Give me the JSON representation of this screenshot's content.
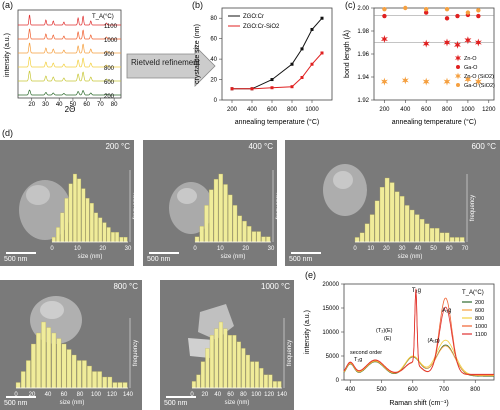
{
  "figure": {
    "panel_labels": [
      "(a)",
      "(b)",
      "(c)",
      "(d)",
      "(e)"
    ],
    "arrow_label": "Rietveld refinement"
  },
  "colors": {
    "ta1100": "#e03030",
    "ta1000": "#f06030",
    "ta900": "#f5a040",
    "ta800": "#f3d040",
    "ta600": "#c8c83a",
    "ta200": "#2e6b2e",
    "black_series": "#111111",
    "red_series": "#e02020",
    "hist_fill": "#f0ec9a",
    "hist_stroke": "#b8b060"
  },
  "chart_data": [
    {
      "id": "a",
      "type": "line",
      "legend_title": "T_A(°C)",
      "xlabel": "2Θ",
      "ylabel": "intensity (a.u.)",
      "xlim": [
        10,
        85
      ],
      "xticks": [
        20,
        30,
        40,
        50,
        60,
        70,
        80
      ],
      "series": [
        {
          "name": "1100",
          "offset": 5
        },
        {
          "name": "1000",
          "offset": 4
        },
        {
          "name": "900",
          "offset": 3
        },
        {
          "name": "800",
          "offset": 2
        },
        {
          "name": "600",
          "offset": 1
        },
        {
          "name": "200",
          "offset": 0
        }
      ],
      "peaks": [
        18.4,
        30.3,
        35.7,
        43.4,
        53.8,
        57.4,
        63.0,
        74.5
      ]
    },
    {
      "id": "b",
      "type": "line",
      "xlabel": "annealing temperature (°C)",
      "ylabel": "crystallite size (nm)",
      "xlim": [
        100,
        1200
      ],
      "ylim": [
        0,
        90
      ],
      "xticks": [
        200,
        400,
        600,
        800,
        1000
      ],
      "yticks": [
        0,
        20,
        40,
        60,
        80
      ],
      "x": [
        200,
        400,
        600,
        800,
        900,
        1000,
        1100
      ],
      "series": [
        {
          "name": "ZGO:Cr",
          "values": [
            11,
            11,
            20,
            35,
            50,
            69,
            80
          ]
        },
        {
          "name": "ZGO:Cr-SiO2",
          "values": [
            11,
            11,
            12,
            13,
            22,
            35,
            46
          ]
        }
      ]
    },
    {
      "id": "c",
      "type": "scatter",
      "xlabel": "annealing temperature (°C)",
      "ylabel": "bond length (Å)",
      "xlim": [
        100,
        1250
      ],
      "ylim": [
        1.92,
        2.0
      ],
      "xticks": [
        200,
        400,
        600,
        800,
        1000,
        1200
      ],
      "yticks": [
        1.92,
        1.94,
        1.96,
        1.98,
        2.0
      ],
      "ref_lines": [
        1.9935,
        1.97
      ],
      "series": [
        {
          "name": "Zn-O",
          "marker": "star",
          "x": [
            200,
            600,
            800,
            900,
            1000,
            1100
          ],
          "values": [
            1.973,
            1.969,
            1.97,
            1.968,
            1.972,
            1.97
          ]
        },
        {
          "name": "Ga-O",
          "marker": "dot",
          "x": [
            200,
            600,
            800,
            900,
            1000,
            1100
          ],
          "values": [
            1.993,
            1.996,
            1.991,
            1.993,
            1.994,
            1.993
          ]
        },
        {
          "name": "Zn-O (SiO2)",
          "marker": "star",
          "x": [
            200,
            400,
            600,
            800,
            1000,
            1100
          ],
          "values": [
            1.936,
            1.937,
            1.936,
            1.936,
            1.938,
            1.936
          ]
        },
        {
          "name": "Ga-O (SiO2)",
          "marker": "dot",
          "x": [
            200,
            400,
            600,
            800,
            1000,
            1100
          ],
          "values": [
            1.999,
            2.0,
            1.999,
            1.999,
            1.996,
            1.998
          ]
        }
      ]
    },
    {
      "id": "d1",
      "type": "bar",
      "temperature": "200 °C",
      "scale": "500 nm",
      "xlabel": "size (nm)",
      "ylabel": "frequency",
      "xlim": [
        0,
        30
      ],
      "xticks": [
        0,
        10,
        20,
        30
      ],
      "values": [
        1,
        3,
        6,
        9,
        12,
        14,
        13,
        11,
        9,
        8,
        6,
        5,
        4,
        3,
        2,
        2,
        1,
        1
      ]
    },
    {
      "id": "d2",
      "type": "bar",
      "temperature": "400 °C",
      "scale": "500 nm",
      "xlabel": "size (nm)",
      "ylabel": "frequency",
      "xlim": [
        0,
        30
      ],
      "xticks": [
        0,
        10,
        20,
        30
      ],
      "values": [
        1,
        3,
        7,
        10,
        12,
        13,
        11,
        9,
        7,
        5,
        4,
        3,
        2,
        2,
        1,
        1
      ]
    },
    {
      "id": "d3",
      "type": "bar",
      "temperature": "600 °C",
      "scale": "500 nm",
      "xlabel": "size (nm)",
      "ylabel": "frequency",
      "xlim": [
        0,
        70
      ],
      "xticks": [
        0,
        10,
        20,
        30,
        40,
        50,
        60,
        70
      ],
      "values": [
        1,
        2,
        4,
        6,
        9,
        12,
        14,
        13,
        11,
        10,
        8,
        7,
        6,
        5,
        4,
        3,
        3,
        2,
        2,
        1,
        1,
        1
      ]
    },
    {
      "id": "d4",
      "type": "bar",
      "temperature": "800 °C",
      "scale": "500 nm",
      "xlabel": "size (nm)",
      "ylabel": "frequency",
      "xlim": [
        0,
        140
      ],
      "xticks": [
        0,
        20,
        40,
        60,
        80,
        100,
        120,
        140
      ],
      "values": [
        1,
        3,
        5,
        8,
        10,
        12,
        11,
        10,
        9,
        8,
        7,
        6,
        5,
        5,
        4,
        3,
        3,
        2,
        2,
        1,
        1,
        1
      ]
    },
    {
      "id": "d5",
      "type": "bar",
      "temperature": "1000 °C",
      "scale": "500 nm",
      "xlabel": "size (nm)",
      "ylabel": "frequency",
      "xlim": [
        0,
        140
      ],
      "xticks": [
        0,
        20,
        40,
        60,
        80,
        100,
        120,
        140
      ],
      "values": [
        1,
        2,
        4,
        6,
        8,
        9,
        10,
        9,
        8,
        8,
        7,
        6,
        5,
        4,
        4,
        3,
        2,
        2,
        1,
        1
      ]
    },
    {
      "id": "e",
      "type": "line",
      "legend_title": "T_A(°C)",
      "xlabel": "Raman shift (cm⁻¹)",
      "ylabel": "intensity (a.u.)",
      "xlim": [
        380,
        860
      ],
      "ylim": [
        0,
        20000
      ],
      "xticks": [
        400,
        500,
        600,
        700,
        800
      ],
      "yticks": [
        0,
        5000,
        10000,
        15000,
        20000
      ],
      "series": [
        {
          "name": "200",
          "peak_height": 6500
        },
        {
          "name": "600",
          "peak_height": 6200
        },
        {
          "name": "800",
          "peak_height": 7300
        },
        {
          "name": "1000",
          "peak_height": 16000
        },
        {
          "name": "1100",
          "peak_height": 14000
        }
      ],
      "annotations": [
        "second order T₁g",
        "(T₂)(E)",
        "(E)",
        "T₁g",
        "(A₁g)",
        "A₁g"
      ]
    }
  ]
}
